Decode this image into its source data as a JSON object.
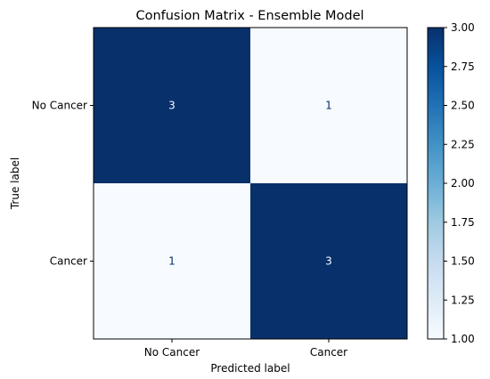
{
  "chart_data": {
    "type": "heatmap",
    "title": "Confusion Matrix - Ensemble Model",
    "xlabel": "Predicted label",
    "ylabel": "True label",
    "x_categories": [
      "No Cancer",
      "Cancer"
    ],
    "y_categories": [
      "No Cancer",
      "Cancer"
    ],
    "values": [
      [
        3,
        1
      ],
      [
        1,
        3
      ]
    ],
    "colormap": "Blues",
    "colorbar": {
      "range": [
        1.0,
        3.0
      ],
      "ticks": [
        "1.00",
        "1.25",
        "1.50",
        "1.75",
        "2.00",
        "2.25",
        "2.50",
        "2.75",
        "3.00"
      ]
    },
    "colors": {
      "low": "#f7fbff",
      "high": "#08306b",
      "text_on_dark": "#f7fbff",
      "text_on_light": "#08306b"
    }
  }
}
